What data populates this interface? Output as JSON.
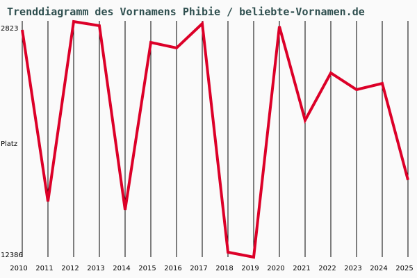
{
  "chart_data": {
    "type": "line",
    "title": "Trenddiagramm des Vornamens Phibie / beliebte-Vornamen.de",
    "xlabel": "",
    "ylabel": "Platz",
    "y_inverted": true,
    "ylim": [
      2823,
      12386
    ],
    "y_tick_labels": [
      "2823",
      "12386"
    ],
    "x": [
      "2010",
      "2011",
      "2012",
      "2013",
      "2014",
      "2015",
      "2016",
      "2017",
      "2018",
      "2019",
      "2020",
      "2021",
      "2022",
      "2023",
      "2024",
      "2025"
    ],
    "series": [
      {
        "name": "Phibie",
        "color": "#dc0028",
        "values": [
          3161,
          10127,
          2823,
          2992,
          10465,
          3669,
          3895,
          2908,
          12186,
          12386,
          3020,
          6828,
          4910,
          5587,
          5333,
          9253
        ]
      }
    ],
    "grid": {
      "vertical": true,
      "horizontal": false
    },
    "legend": "none"
  }
}
